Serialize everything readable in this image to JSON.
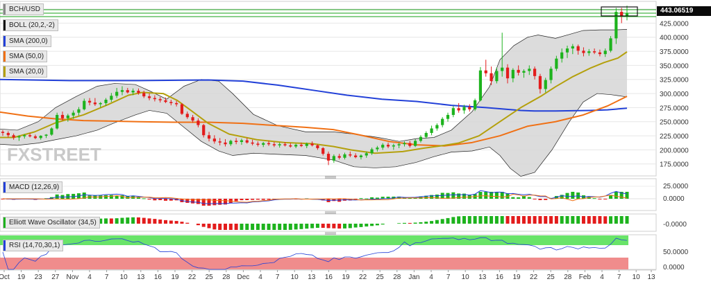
{
  "chart_data": {
    "type": "candlestick",
    "symbol": "BCH/USD",
    "last_price": "443.06519",
    "x_ticks": [
      "Oct",
      "19",
      "23",
      "27",
      "Nov",
      "4",
      "7",
      "10",
      "13",
      "16",
      "19",
      "22",
      "25",
      "28",
      "Dec",
      "4",
      "7",
      "10",
      "13",
      "16",
      "19",
      "22",
      "25",
      "28",
      "Jan",
      "4",
      "7",
      "10",
      "13",
      "16",
      "19",
      "22",
      "25",
      "28",
      "Feb",
      "4",
      "7",
      "10",
      "13"
    ],
    "y_ticks": [
      "450.0000",
      "425.0000",
      "400.0000",
      "375.0000",
      "350.0000",
      "325.0000",
      "300.0000",
      "275.0000",
      "250.0000",
      "225.0000",
      "200.0000",
      "175.0000"
    ],
    "ylim": [
      155,
      455
    ],
    "indicators": {
      "boll": "BOLL (20,2,-2)",
      "sma200": "SMA (200,0)",
      "sma50": "SMA (50,0)",
      "sma20": "SMA (20,0)"
    },
    "colors": {
      "up": "#1db31d",
      "down": "#e31c1c",
      "sma200": "#2240d8",
      "sma50": "#f07014",
      "sma20": "#b4a00c",
      "band": "#d6d6d6",
      "rsi_hi": "#69e469",
      "rsi_lo": "#f08c8c"
    },
    "candles": [
      [
        232,
        235,
        225,
        230
      ],
      [
        230,
        233,
        222,
        226
      ],
      [
        226,
        229,
        218,
        222
      ],
      [
        222,
        226,
        216,
        224
      ],
      [
        224,
        228,
        220,
        226
      ],
      [
        226,
        230,
        222,
        224
      ],
      [
        224,
        227,
        219,
        221
      ],
      [
        221,
        226,
        218,
        225
      ],
      [
        225,
        228,
        221,
        227
      ],
      [
        227,
        240,
        225,
        238
      ],
      [
        238,
        266,
        236,
        262
      ],
      [
        262,
        268,
        252,
        256
      ],
      [
        256,
        264,
        250,
        261
      ],
      [
        261,
        270,
        255,
        266
      ],
      [
        266,
        276,
        261,
        272
      ],
      [
        272,
        291,
        270,
        287
      ],
      [
        287,
        292,
        279,
        284
      ],
      [
        284,
        292,
        278,
        281
      ],
      [
        281,
        285,
        275,
        283
      ],
      [
        283,
        292,
        278,
        289
      ],
      [
        289,
        301,
        285,
        296
      ],
      [
        296,
        310,
        292,
        303
      ],
      [
        303,
        313,
        297,
        306
      ],
      [
        306,
        310,
        300,
        302
      ],
      [
        302,
        309,
        297,
        305
      ],
      [
        305,
        309,
        298,
        301
      ],
      [
        301,
        305,
        292,
        295
      ],
      [
        295,
        300,
        288,
        292
      ],
      [
        292,
        297,
        286,
        290
      ],
      [
        290,
        294,
        284,
        288
      ],
      [
        288,
        293,
        283,
        285
      ],
      [
        285,
        289,
        279,
        283
      ],
      [
        283,
        287,
        277,
        281
      ],
      [
        281,
        283,
        262,
        264
      ],
      [
        264,
        268,
        255,
        258
      ],
      [
        258,
        262,
        248,
        252
      ],
      [
        252,
        256,
        240,
        244
      ],
      [
        244,
        246,
        222,
        226
      ],
      [
        226,
        232,
        215,
        220
      ],
      [
        220,
        226,
        211,
        215
      ],
      [
        215,
        221,
        208,
        213
      ],
      [
        213,
        219,
        206,
        210
      ],
      [
        210,
        218,
        207,
        216
      ],
      [
        216,
        221,
        210,
        214
      ],
      [
        214,
        220,
        209,
        217
      ],
      [
        217,
        221,
        211,
        213
      ],
      [
        213,
        218,
        208,
        211
      ],
      [
        211,
        215,
        206,
        209
      ],
      [
        209,
        214,
        205,
        212
      ],
      [
        212,
        216,
        207,
        210
      ],
      [
        210,
        214,
        205,
        208
      ],
      [
        208,
        213,
        204,
        210
      ],
      [
        210,
        214,
        206,
        208
      ],
      [
        208,
        212,
        204,
        206
      ],
      [
        206,
        211,
        203,
        209
      ],
      [
        209,
        213,
        205,
        207
      ],
      [
        207,
        213,
        203,
        211
      ],
      [
        211,
        215,
        206,
        208
      ],
      [
        208,
        210,
        200,
        203
      ],
      [
        203,
        205,
        190,
        193
      ],
      [
        193,
        197,
        173,
        181
      ],
      [
        181,
        192,
        177,
        189
      ],
      [
        189,
        193,
        183,
        186
      ],
      [
        186,
        195,
        183,
        192
      ],
      [
        192,
        197,
        187,
        190
      ],
      [
        190,
        194,
        185,
        187
      ],
      [
        187,
        192,
        183,
        190
      ],
      [
        190,
        197,
        186,
        194
      ],
      [
        194,
        204,
        191,
        201
      ],
      [
        201,
        207,
        197,
        204
      ],
      [
        204,
        212,
        200,
        209
      ],
      [
        209,
        213,
        203,
        206
      ],
      [
        206,
        211,
        200,
        208
      ],
      [
        208,
        213,
        203,
        210
      ],
      [
        210,
        215,
        206,
        212
      ],
      [
        212,
        216,
        204,
        207
      ],
      [
        207,
        219,
        205,
        216
      ],
      [
        216,
        226,
        213,
        223
      ],
      [
        223,
        233,
        220,
        230
      ],
      [
        230,
        243,
        226,
        238
      ],
      [
        238,
        247,
        234,
        244
      ],
      [
        244,
        258,
        240,
        255
      ],
      [
        255,
        266,
        250,
        262
      ],
      [
        262,
        278,
        258,
        274
      ],
      [
        274,
        283,
        266,
        270
      ],
      [
        270,
        280,
        264,
        276
      ],
      [
        276,
        281,
        268,
        272
      ],
      [
        272,
        291,
        269,
        288
      ],
      [
        288,
        347,
        286,
        341
      ],
      [
        341,
        360,
        330,
        336
      ],
      [
        336,
        348,
        315,
        322
      ],
      [
        322,
        346,
        318,
        340
      ],
      [
        340,
        408,
        330,
        346
      ],
      [
        346,
        352,
        318,
        327
      ],
      [
        327,
        345,
        320,
        342
      ],
      [
        342,
        350,
        332,
        337
      ],
      [
        337,
        343,
        328,
        340
      ],
      [
        340,
        350,
        333,
        344
      ],
      [
        344,
        348,
        325,
        331
      ],
      [
        331,
        335,
        300,
        308
      ],
      [
        308,
        328,
        302,
        324
      ],
      [
        324,
        348,
        318,
        344
      ],
      [
        344,
        367,
        340,
        362
      ],
      [
        362,
        380,
        355,
        373
      ],
      [
        373,
        385,
        363,
        380
      ],
      [
        380,
        388,
        370,
        384
      ],
      [
        384,
        387,
        369,
        376
      ],
      [
        376,
        382,
        366,
        372
      ],
      [
        372,
        379,
        367,
        375
      ],
      [
        375,
        380,
        370,
        373
      ],
      [
        373,
        378,
        366,
        370
      ],
      [
        370,
        380,
        365,
        376
      ],
      [
        376,
        402,
        373,
        398
      ],
      [
        398,
        452,
        388,
        445
      ],
      [
        445,
        452,
        425,
        438
      ],
      [
        438,
        456,
        430,
        443
      ]
    ],
    "sma20": [
      [
        0,
        222
      ],
      [
        20,
        222
      ],
      [
        50,
        232
      ],
      [
        80,
        248
      ],
      [
        120,
        262
      ],
      [
        155,
        280
      ],
      [
        185,
        297
      ],
      [
        205,
        302
      ],
      [
        235,
        300
      ],
      [
        255,
        288
      ],
      [
        275,
        270
      ],
      [
        300,
        247
      ],
      [
        330,
        228
      ],
      [
        370,
        218
      ],
      [
        410,
        213
      ],
      [
        450,
        211
      ],
      [
        480,
        206
      ],
      [
        505,
        200
      ],
      [
        540,
        194
      ],
      [
        580,
        197
      ],
      [
        610,
        203
      ],
      [
        640,
        208
      ],
      [
        660,
        212
      ],
      [
        690,
        225
      ],
      [
        720,
        250
      ],
      [
        750,
        275
      ],
      [
        780,
        296
      ],
      [
        800,
        312
      ],
      [
        825,
        330
      ],
      [
        850,
        345
      ],
      [
        870,
        355
      ],
      [
        890,
        363
      ],
      [
        903,
        374
      ]
    ],
    "sma50": [
      [
        0,
        267
      ],
      [
        40,
        260
      ],
      [
        80,
        255
      ],
      [
        120,
        252
      ],
      [
        160,
        251
      ],
      [
        200,
        250
      ],
      [
        250,
        249
      ],
      [
        300,
        249
      ],
      [
        350,
        247
      ],
      [
        400,
        243
      ],
      [
        440,
        240
      ],
      [
        480,
        236
      ],
      [
        520,
        226
      ],
      [
        560,
        215
      ],
      [
        600,
        209
      ],
      [
        640,
        207
      ],
      [
        680,
        213
      ],
      [
        720,
        225
      ],
      [
        760,
        242
      ],
      [
        800,
        250
      ],
      [
        840,
        262
      ],
      [
        875,
        278
      ],
      [
        903,
        295
      ]
    ],
    "sma200": [
      [
        0,
        325
      ],
      [
        100,
        323
      ],
      [
        200,
        323
      ],
      [
        300,
        324
      ],
      [
        350,
        322
      ],
      [
        400,
        315
      ],
      [
        450,
        306
      ],
      [
        500,
        297
      ],
      [
        550,
        290
      ],
      [
        600,
        286
      ],
      [
        650,
        279
      ],
      [
        700,
        275
      ],
      [
        750,
        270
      ],
      [
        770,
        269
      ],
      [
        800,
        269
      ],
      [
        850,
        270
      ],
      [
        875,
        271
      ],
      [
        903,
        274
      ]
    ],
    "boll_upper": [
      [
        0,
        237
      ],
      [
        25,
        235
      ],
      [
        55,
        250
      ],
      [
        80,
        275
      ],
      [
        110,
        295
      ],
      [
        140,
        313
      ],
      [
        165,
        318
      ],
      [
        195,
        316
      ],
      [
        215,
        305
      ],
      [
        240,
        290
      ],
      [
        265,
        313
      ],
      [
        290,
        325
      ],
      [
        315,
        322
      ],
      [
        335,
        300
      ],
      [
        365,
        263
      ],
      [
        400,
        243
      ],
      [
        440,
        232
      ],
      [
        480,
        232
      ],
      [
        510,
        228
      ],
      [
        545,
        222
      ],
      [
        575,
        215
      ],
      [
        600,
        220
      ],
      [
        625,
        222
      ],
      [
        650,
        235
      ],
      [
        680,
        268
      ],
      [
        705,
        312
      ],
      [
        720,
        360
      ],
      [
        740,
        385
      ],
      [
        760,
        400
      ],
      [
        775,
        404
      ],
      [
        800,
        398
      ],
      [
        820,
        405
      ],
      [
        840,
        412
      ],
      [
        865,
        413
      ],
      [
        885,
        413
      ],
      [
        903,
        414
      ]
    ],
    "boll_lower": [
      [
        0,
        210
      ],
      [
        25,
        208
      ],
      [
        55,
        212
      ],
      [
        80,
        218
      ],
      [
        110,
        225
      ],
      [
        140,
        235
      ],
      [
        165,
        248
      ],
      [
        195,
        262
      ],
      [
        215,
        270
      ],
      [
        240,
        265
      ],
      [
        265,
        240
      ],
      [
        290,
        215
      ],
      [
        315,
        198
      ],
      [
        335,
        190
      ],
      [
        365,
        194
      ],
      [
        400,
        192
      ],
      [
        440,
        190
      ],
      [
        480,
        182
      ],
      [
        510,
        170
      ],
      [
        540,
        168
      ],
      [
        570,
        170
      ],
      [
        600,
        178
      ],
      [
        625,
        188
      ],
      [
        650,
        196
      ],
      [
        680,
        198
      ],
      [
        705,
        205
      ],
      [
        720,
        190
      ],
      [
        735,
        167
      ],
      [
        750,
        153
      ],
      [
        770,
        160
      ],
      [
        795,
        200
      ],
      [
        820,
        250
      ],
      [
        840,
        285
      ],
      [
        860,
        300
      ],
      [
        880,
        298
      ],
      [
        903,
        294
      ]
    ],
    "macd": {
      "label": "MACD (12,26,9)",
      "y_ticks": [
        "25.0000",
        "0.0000"
      ]
    },
    "ewo": {
      "label": "Elliott Wave Oscillator (34,5)",
      "y_ticks": [
        "-0.0000"
      ]
    },
    "rsi": {
      "label": "RSI (14,70,30,1)",
      "y_ticks": [
        "50.0000",
        "0.0000"
      ]
    }
  }
}
